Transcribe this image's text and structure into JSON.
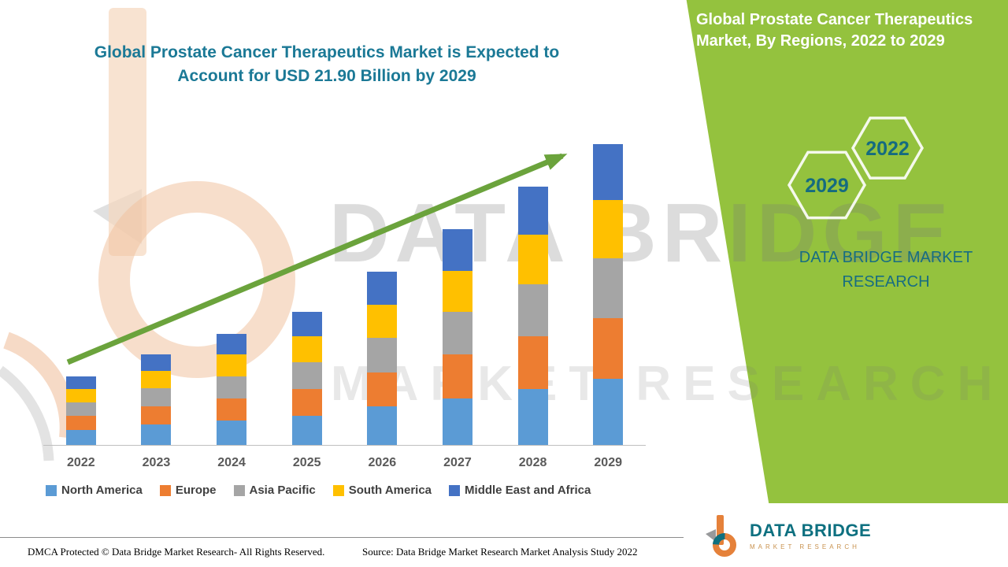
{
  "chart": {
    "title_lines": [
      "Global Prostate Cancer Therapeutics Market is Expected to",
      "Account for USD 21.90 Billion by 2029"
    ]
  },
  "side_panel": {
    "title_lines": [
      "Global Prostate Cancer Therapeutics",
      "Market, By Regions, 2022 to 2029"
    ],
    "hexagons": [
      {
        "label": "2029"
      },
      {
        "label": "2022"
      }
    ],
    "brand_lines": [
      "DATA BRIDGE MARKET",
      "RESEARCH"
    ],
    "background_color": "#94c23e"
  },
  "watermark": {
    "line1": "DATA BRIDGE",
    "line2": "MARKET RESEARCH"
  },
  "logo": {
    "name": "DATA BRIDGE",
    "subtitle": "MARKET RESEARCH"
  },
  "footer": {
    "dmca": "DMCA Protected © Data Bridge Market Research- All Rights Reserved.",
    "source": "Source: Data Bridge Market Research Market Analysis Study 2022"
  },
  "chart_data": {
    "type": "bar",
    "stacked": true,
    "title": "Global Prostate Cancer Therapeutics Market is Expected to Account for USD 21.90 Billion by 2029",
    "unit": "USD Billion",
    "categories": [
      "2022",
      "2023",
      "2024",
      "2025",
      "2026",
      "2027",
      "2028",
      "2029"
    ],
    "series": [
      {
        "name": "North America",
        "color": "#5b9bd5",
        "values": [
          1.1,
          1.5,
          1.8,
          2.1,
          2.8,
          3.4,
          4.1,
          4.8
        ]
      },
      {
        "name": "Europe",
        "color": "#ed7d31",
        "values": [
          1.0,
          1.3,
          1.6,
          2.0,
          2.5,
          3.2,
          3.8,
          4.4
        ]
      },
      {
        "name": "Asia Pacific",
        "color": "#a5a5a5",
        "values": [
          1.0,
          1.3,
          1.6,
          1.9,
          2.5,
          3.1,
          3.8,
          4.4
        ]
      },
      {
        "name": "South America",
        "color": "#ffc000",
        "values": [
          1.0,
          1.3,
          1.6,
          1.9,
          2.4,
          3.0,
          3.6,
          4.2
        ]
      },
      {
        "name": "Middle East and Africa",
        "color": "#4472c4",
        "values": [
          0.9,
          1.2,
          1.5,
          1.8,
          2.4,
          3.0,
          3.5,
          4.1
        ]
      }
    ],
    "totals": [
      5.0,
      6.6,
      8.1,
      9.7,
      12.6,
      15.7,
      18.8,
      21.9
    ],
    "values_note": "Segment values estimated from bar heights; 2029 total of 21.90 USD Billion stated in title",
    "legend_position": "bottom",
    "y_axis_visible": false,
    "annotations": [
      "Green upward trend arrow from 2022 bar to 2029 bar"
    ]
  }
}
